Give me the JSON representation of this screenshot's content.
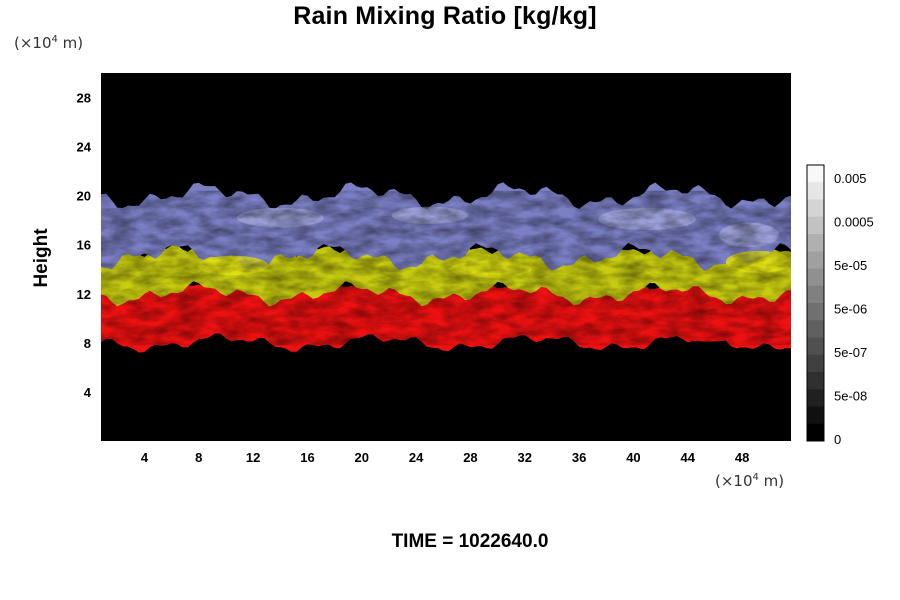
{
  "chart_data": {
    "type": "heatmap",
    "title": "Rain Mixing Ratio [kg/kg]",
    "ylabel": "Height",
    "xlabel": "",
    "x_unit": {
      "prefix": "(×10",
      "exponent": "4",
      "suffix": " m)"
    },
    "y_unit": {
      "prefix": "(×10",
      "exponent": "4",
      "suffix": " m)"
    },
    "x_ticks": [
      4,
      8,
      12,
      16,
      20,
      24,
      28,
      32,
      36,
      40,
      44,
      48
    ],
    "y_ticks": [
      4,
      8,
      12,
      16,
      20,
      24,
      28
    ],
    "xlim": [
      0,
      51
    ],
    "ylim": [
      0,
      30
    ],
    "grid": false,
    "bands": [
      {
        "name": "red",
        "color": "#ee1111",
        "y_range": [
          8,
          13
        ]
      },
      {
        "name": "yellow",
        "color": "#c8cc10",
        "y_range": [
          12,
          16
        ]
      },
      {
        "name": "blue",
        "color": "#7b7fc4",
        "y_range": [
          15,
          20
        ]
      }
    ],
    "colorbar": {
      "labels": [
        "0.005",
        "0.0005",
        "5e-05",
        "5e-06",
        "5e-07",
        "5e-08",
        "0"
      ],
      "colors": [
        "#f8f8f8",
        "#e6e6e6",
        "#d4d4d4",
        "#c2c2c2",
        "#b0b0b0",
        "#a0a0a0",
        "#909090",
        "#808080",
        "#707070",
        "#606060",
        "#505050",
        "#404040",
        "#303030",
        "#202020",
        "#101010",
        "#000000"
      ]
    }
  },
  "footer": {
    "time_label": "TIME = 1022640.0"
  }
}
